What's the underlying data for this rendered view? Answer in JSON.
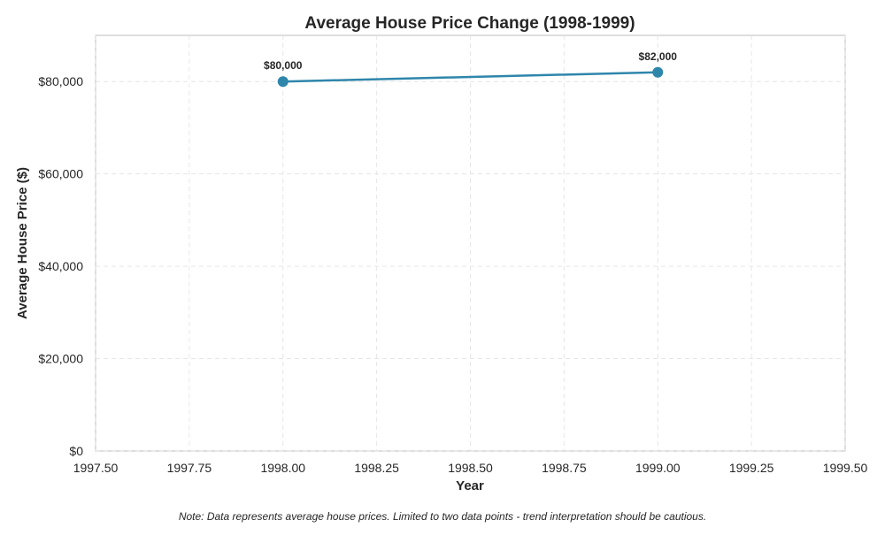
{
  "chart_data": {
    "type": "line",
    "title": "Average House Price Change (1998-1999)",
    "xlabel": "Year",
    "ylabel": "Average House Price ($)",
    "xlim": [
      1997.5,
      1999.5
    ],
    "ylim": [
      0,
      90000
    ],
    "x_ticks": [
      1997.5,
      1997.75,
      1998.0,
      1998.25,
      1998.5,
      1998.75,
      1999.0,
      1999.25,
      1999.5
    ],
    "x_tick_labels": [
      "1997.50",
      "1997.75",
      "1998.00",
      "1998.25",
      "1998.50",
      "1998.75",
      "1999.00",
      "1999.25",
      "1999.50"
    ],
    "y_ticks": [
      0,
      20000,
      40000,
      60000,
      80000
    ],
    "y_tick_labels": [
      "$0",
      "$20,000",
      "$40,000",
      "$60,000",
      "$80,000"
    ],
    "grid": true,
    "series": [
      {
        "x": [
          1998,
          1999
        ],
        "values": [
          80000,
          82000
        ],
        "data_labels": [
          "$80,000",
          "$82,000"
        ],
        "color": "#2e86ab"
      }
    ],
    "note": "Note: Data represents average house prices. Limited to two data points - trend interpretation should be cautious."
  }
}
